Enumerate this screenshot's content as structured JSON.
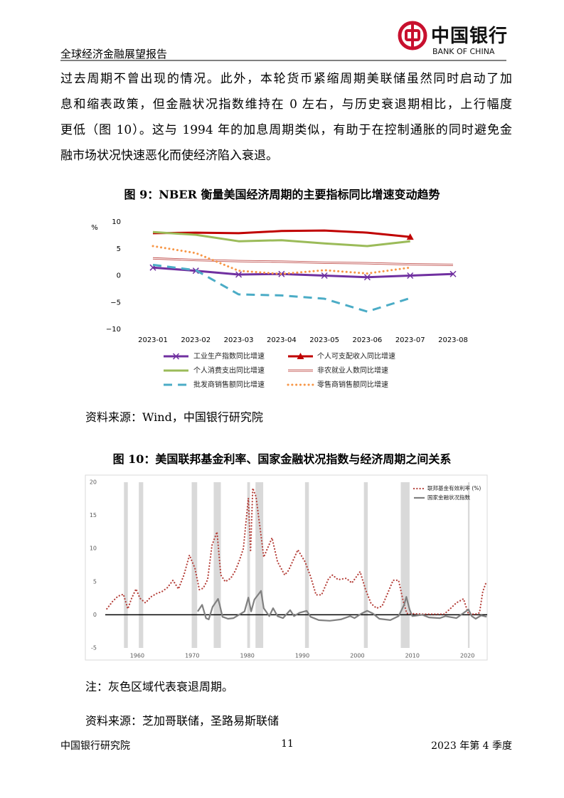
{
  "header": {
    "title": "全球经济金融展望报告",
    "logo_cn": "中国银行",
    "logo_en": "BANK OF CHINA"
  },
  "body": [
    "过去周期不曾出现的情况。此外，本轮货币紧缩周期美联储虽然同时启动了加",
    "息和缩表政策，但金融状况指数维持在 0 左右，与历史衰退期相比，上行幅度",
    "更低（图 10）。这与 1994 年的加息周期类似，有助于在控制通胀的同时避免金",
    "融市场状况快速恶化而使经济陷入衰退。"
  ],
  "figure9": {
    "caption": "图 9：NBER 衡量美国经济周期的主要指标同比增速变动趋势",
    "chart_data": {
      "type": "line",
      "ylabel": "%",
      "categories": [
        "2023-01",
        "2023-02",
        "2023-03",
        "2023-04",
        "2023-05",
        "2023-06",
        "2023-07",
        "2023-08"
      ],
      "ylim": [
        -10,
        10
      ],
      "yticks": [
        {
          "value": -10,
          "label": "−10"
        },
        {
          "value": -5,
          "label": "−5"
        },
        0,
        5,
        10
      ],
      "grid": false,
      "series": [
        {
          "name": "工业生产指数同比增速",
          "color": "#7030a0",
          "style": "solid",
          "marker": "x",
          "values": [
            1.5,
            0.9,
            0.2,
            0.3,
            0.0,
            -0.3,
            0.0,
            0.3
          ]
        },
        {
          "name": "个人可支配收入同比增速",
          "color": "#c00000",
          "style": "solid",
          "marker": "triangle",
          "values": [
            7.9,
            8.0,
            7.9,
            8.3,
            8.4,
            8.0,
            7.2,
            null
          ]
        },
        {
          "name": "个人消费支出同比增速",
          "color": "#9bbb59",
          "style": "solid",
          "values": [
            8.1,
            7.6,
            6.4,
            6.6,
            6.0,
            5.5,
            6.4,
            null
          ]
        },
        {
          "name": "非农就业人数同比增速",
          "color": "#c0504d",
          "style": "double",
          "values": [
            3.2,
            2.9,
            2.7,
            2.6,
            2.4,
            2.3,
            2.1,
            2.0
          ]
        },
        {
          "name": "批发商销售额同比增速",
          "color": "#4bacc6",
          "style": "dash",
          "values": [
            2.0,
            1.0,
            -3.5,
            -3.7,
            -4.3,
            -6.7,
            -4.2,
            null
          ]
        },
        {
          "name": "零售商销售额同比增速",
          "color": "#f79646",
          "style": "dot",
          "values": [
            5.5,
            4.2,
            0.9,
            0.3,
            1.0,
            0.4,
            1.5,
            null
          ]
        }
      ]
    },
    "source": "资料来源：Wind，中国银行研究院"
  },
  "figure10": {
    "caption": "图 10：美国联邦基金利率、国家金融状况指数与经济周期之间关系",
    "chart_data": {
      "type": "line",
      "xlim": [
        1954.2,
        2023.6
      ],
      "xticks": [
        1960,
        1970,
        1980,
        1990,
        2000,
        2010,
        2020
      ],
      "ylim": [
        -5,
        20
      ],
      "yticks": [
        -5,
        0,
        5,
        10,
        15,
        20
      ],
      "zero_line": true,
      "shade_color": "#d9d9d9",
      "shaded_periods": [
        [
          1957.6,
          1958.3
        ],
        [
          1960.3,
          1961.1
        ],
        [
          1969.9,
          1970.9
        ],
        [
          1973.9,
          1975.2
        ],
        [
          1980.0,
          1980.5
        ],
        [
          1981.5,
          1982.9
        ],
        [
          1990.5,
          1991.2
        ],
        [
          2001.2,
          2001.9
        ],
        [
          2007.9,
          2009.5
        ],
        [
          2020.1,
          2020.4
        ]
      ],
      "series": [
        {
          "name": "联邦基金有效利率 (%)",
          "color": "#b5403a",
          "style": "dot",
          "x": [
            1954.5,
            1955.5,
            1956.5,
            1957.5,
            1958.3,
            1959,
            1959.8,
            1960.5,
            1961.5,
            1962.5,
            1963.5,
            1964.5,
            1965.5,
            1966.5,
            1967.5,
            1968.5,
            1969.5,
            1970.5,
            1971.3,
            1972,
            1972.8,
            1973.6,
            1974.5,
            1975.2,
            1976,
            1977,
            1977.8,
            1978.5,
            1979.3,
            1980.2,
            1980.6,
            1981.0,
            1981.6,
            1982.5,
            1983,
            1984.5,
            1985.5,
            1986.8,
            1987.5,
            1989.2,
            1990.5,
            1991.5,
            1992.5,
            1993.5,
            1994.8,
            1995.5,
            1996.5,
            1998,
            1999,
            2000.5,
            2001.5,
            2002.5,
            2003.5,
            2004.5,
            2005.5,
            2006.5,
            2007.5,
            2008.3,
            2009,
            2012,
            2015.8,
            2017,
            2018,
            2019.3,
            2020.2,
            2021.5,
            2022.2,
            2022.8,
            2023.5
          ],
          "values": [
            0.9,
            2.0,
            2.8,
            3.1,
            0.9,
            2.5,
            3.9,
            2.5,
            1.8,
            2.7,
            3.2,
            3.5,
            4.1,
            5.2,
            3.9,
            6.0,
            9.0,
            7.0,
            3.8,
            4.0,
            5.3,
            10.5,
            12.5,
            6.0,
            5.0,
            5.5,
            6.6,
            8.0,
            10.0,
            17.6,
            9.5,
            19.1,
            17.8,
            12.0,
            8.7,
            11.6,
            8.0,
            6.0,
            6.7,
            9.8,
            8.0,
            5.8,
            3.0,
            3.0,
            5.5,
            6.0,
            5.3,
            5.5,
            4.8,
            6.5,
            3.8,
            1.7,
            1.0,
            1.3,
            3.2,
            5.2,
            5.2,
            2.2,
            0.2,
            0.1,
            0.1,
            1.0,
            1.8,
            2.4,
            0.1,
            0.1,
            0.3,
            3.5,
            5.1
          ]
        },
        {
          "name": "国家金融状况指数",
          "color": "#808080",
          "style": "solid",
          "x": [
            1971,
            1971.8,
            1972.5,
            1973,
            1973.7,
            1974.7,
            1975,
            1975.5,
            1976.5,
            1977.5,
            1978.5,
            1979.5,
            1980.2,
            1980.7,
            1981.3,
            1982.5,
            1983,
            1984,
            1984.7,
            1985.5,
            1986.5,
            1987.8,
            1988.5,
            1989.5,
            1990.8,
            1991.5,
            1993,
            1995,
            1997,
            1998.7,
            1999.5,
            2000.8,
            2001.8,
            2002.8,
            2004,
            2006,
            2007.5,
            2008.5,
            2008.9,
            2009.5,
            2010,
            2011.8,
            2013,
            2015,
            2016,
            2018,
            2020.2,
            2020.8,
            2021.5,
            2022.5,
            2023.5
          ],
          "values": [
            0.5,
            1.5,
            -0.5,
            -0.7,
            1.2,
            2.4,
            1.5,
            -0.3,
            -0.6,
            -0.5,
            0.0,
            0.5,
            2.6,
            0.5,
            2.3,
            3.6,
            1.0,
            -0.2,
            1.0,
            -0.2,
            -0.5,
            0.7,
            -0.2,
            0.3,
            0.6,
            -0.3,
            -0.8,
            -0.9,
            -0.7,
            -0.2,
            -0.5,
            0.2,
            0.6,
            0.2,
            -0.6,
            -0.8,
            -0.2,
            1.5,
            2.7,
            0.8,
            -0.2,
            0.0,
            -0.4,
            -0.5,
            -0.2,
            -0.5,
            0.8,
            -0.2,
            -0.6,
            -0.1,
            -0.3
          ]
        }
      ]
    },
    "note": "注：灰色区域代表衰退周期。",
    "source": "资料来源：芝加哥联储，圣路易斯联储"
  },
  "footer": {
    "left": "中国银行研究院",
    "page": "11",
    "right": "2023 年第 4 季度"
  }
}
